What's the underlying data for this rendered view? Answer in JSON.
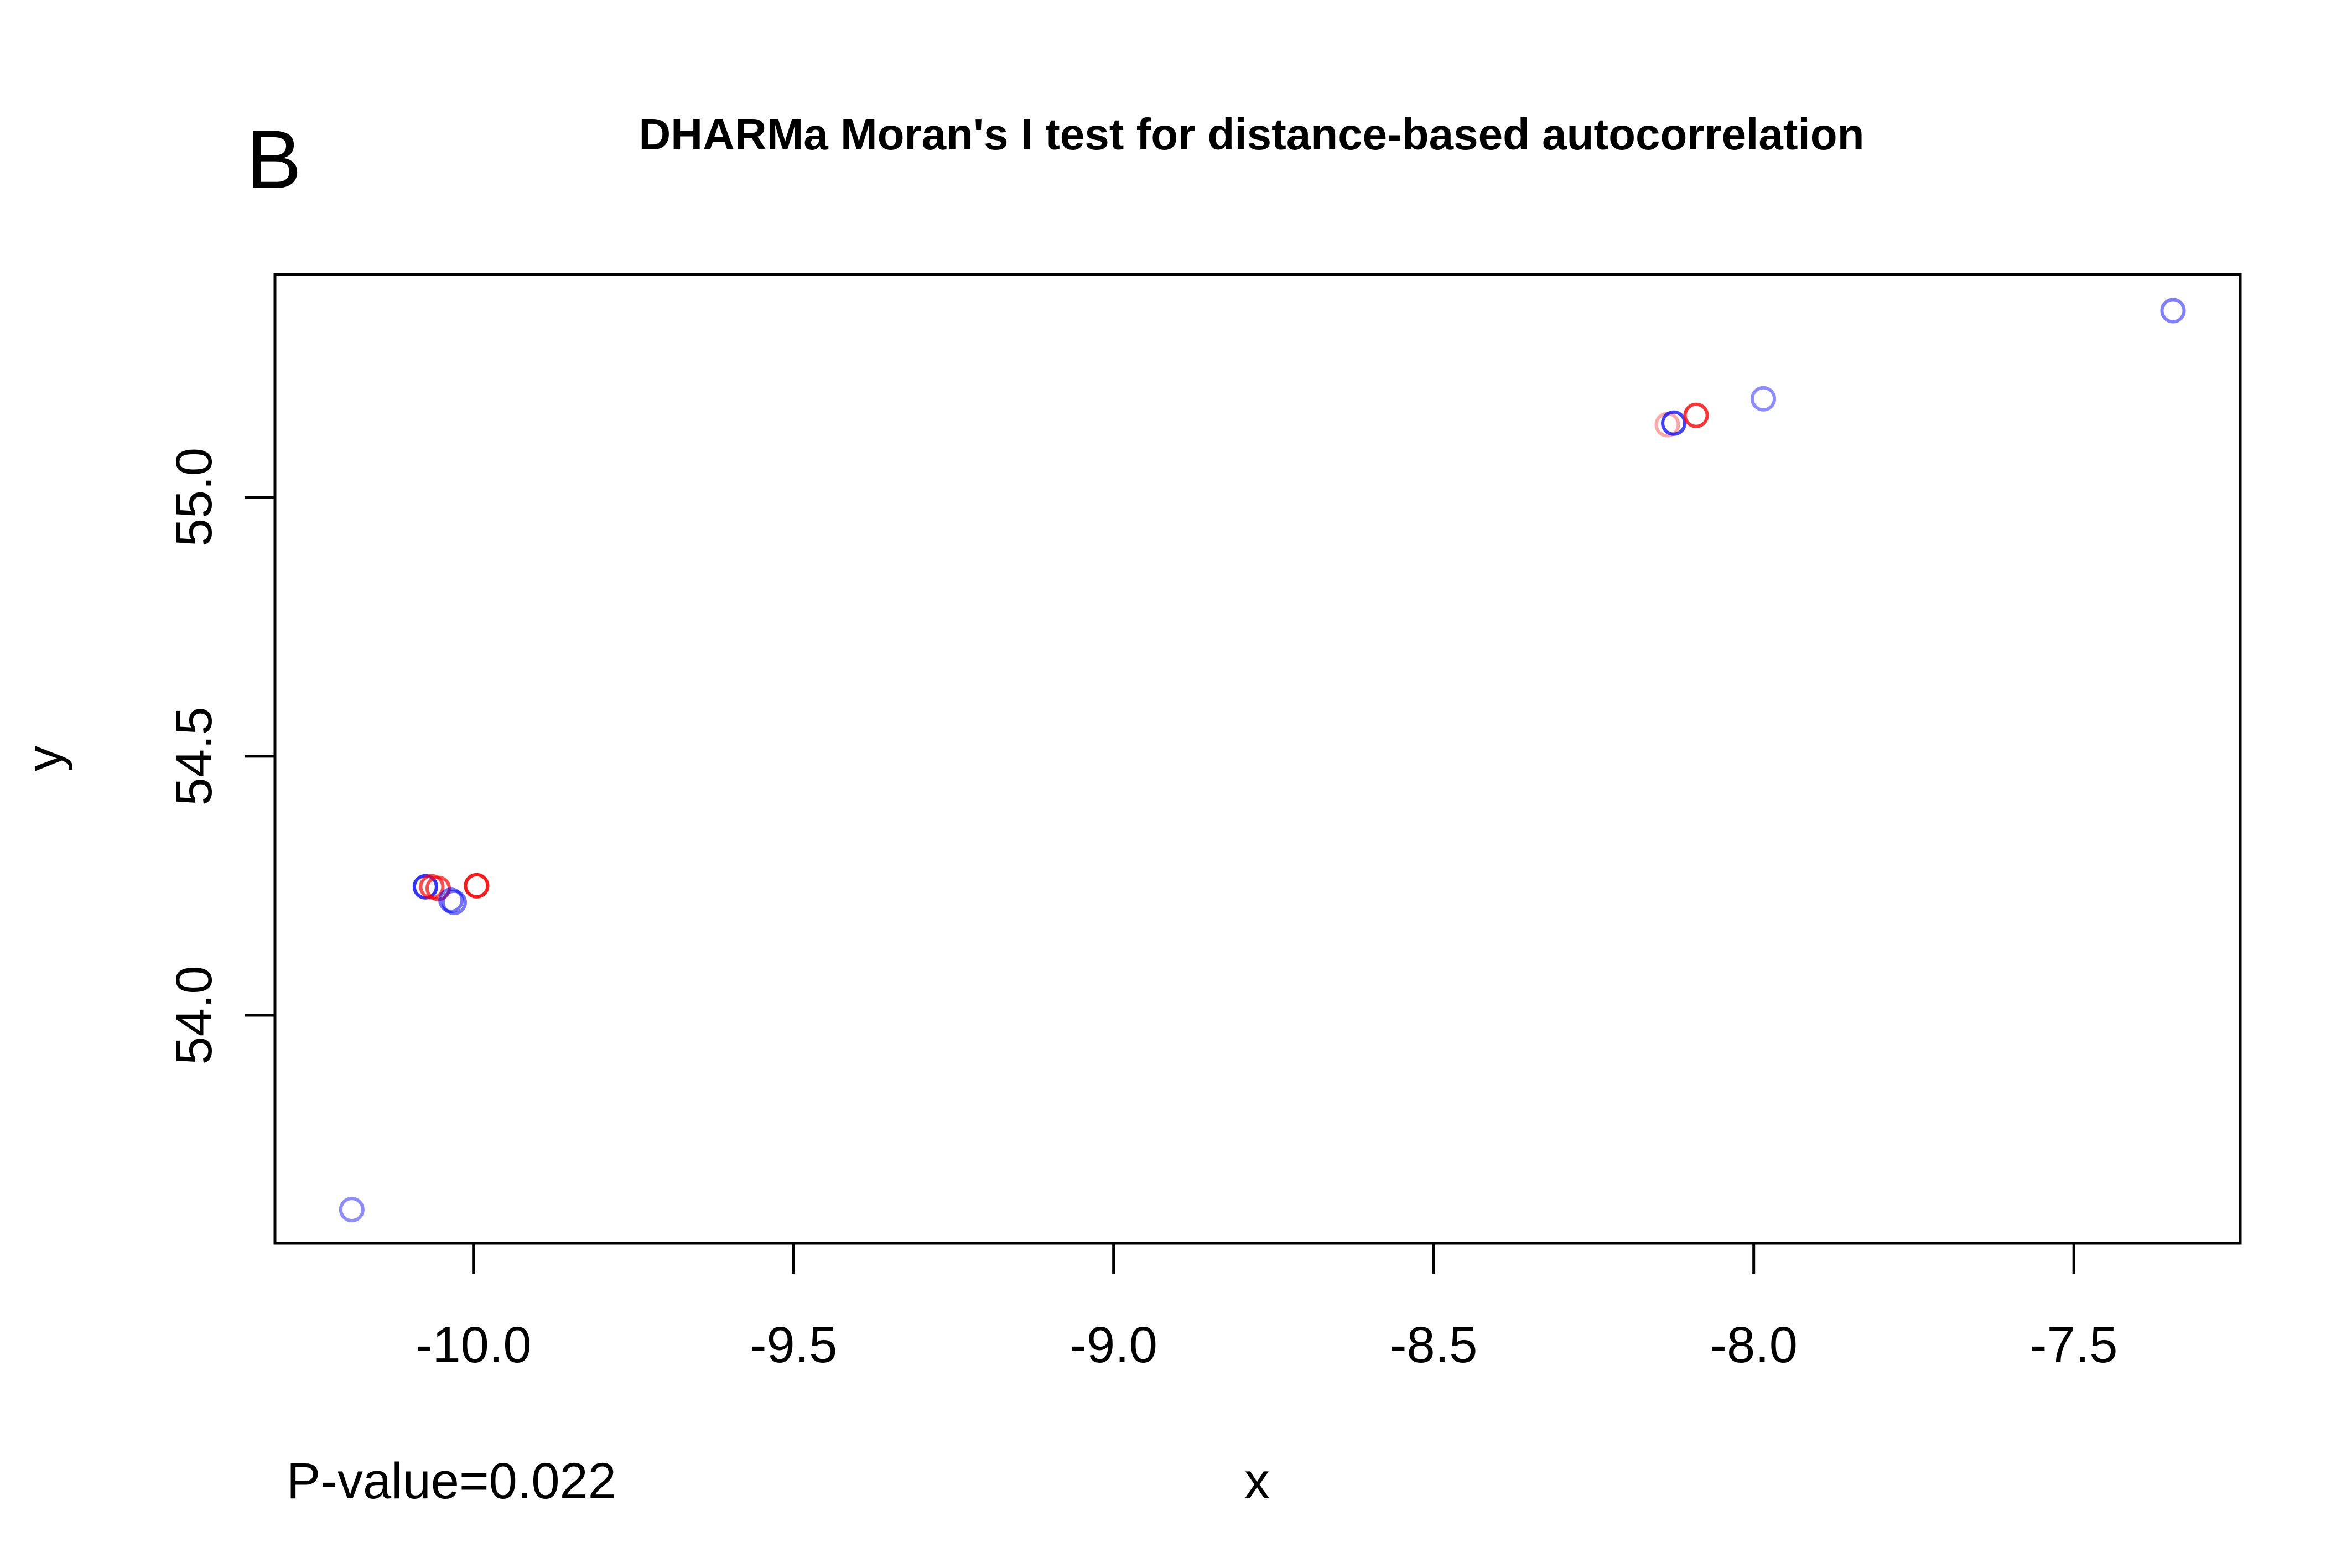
{
  "panel_letter": "B",
  "footer": {
    "pvalue_text": "P-value=0.022"
  },
  "chart_data": {
    "type": "scatter",
    "title": "DHARMa Moran's I test for distance-based autocorrelation",
    "xlabel": "x",
    "ylabel": "y",
    "xlim": [
      -10.31,
      -7.24
    ],
    "ylim": [
      53.56,
      55.43
    ],
    "x_ticks": [
      -10.0,
      -9.5,
      -9.0,
      -8.5,
      -8.0,
      -7.5
    ],
    "x_tick_labels": [
      "-10.0",
      "-9.5",
      "-9.0",
      "-8.5",
      "-8.0",
      "-7.5"
    ],
    "y_ticks": [
      54.0,
      54.5,
      55.0
    ],
    "y_tick_labels": [
      "54.0",
      "54.5",
      "55.0"
    ],
    "grid": false,
    "legend": "none",
    "marker": "open-circle",
    "colors": {
      "blue": "#0000ff",
      "red": "#ff0000"
    },
    "points": [
      {
        "x": -10.19,
        "y": 53.625,
        "color": "#0000ff",
        "alpha": 0.45
      },
      {
        "x": -10.075,
        "y": 54.248,
        "color": "#0000ff",
        "alpha": 0.8
      },
      {
        "x": -10.065,
        "y": 54.248,
        "color": "#ff0000",
        "alpha": 0.7
      },
      {
        "x": -10.055,
        "y": 54.245,
        "color": "#ff0000",
        "alpha": 0.7
      },
      {
        "x": -10.035,
        "y": 54.222,
        "color": "#0000ff",
        "alpha": 0.55
      },
      {
        "x": -10.03,
        "y": 54.218,
        "color": "#0000ff",
        "alpha": 0.55
      },
      {
        "x": -9.995,
        "y": 54.25,
        "color": "#ff0000",
        "alpha": 0.9
      },
      {
        "x": -8.135,
        "y": 55.14,
        "color": "#ff0000",
        "alpha": 0.35
      },
      {
        "x": -8.125,
        "y": 55.143,
        "color": "#0000ff",
        "alpha": 0.75
      },
      {
        "x": -8.09,
        "y": 55.158,
        "color": "#ff0000",
        "alpha": 0.8
      },
      {
        "x": -7.985,
        "y": 55.19,
        "color": "#0000ff",
        "alpha": 0.45
      },
      {
        "x": -7.345,
        "y": 55.36,
        "color": "#0000ff",
        "alpha": 0.5
      }
    ]
  }
}
